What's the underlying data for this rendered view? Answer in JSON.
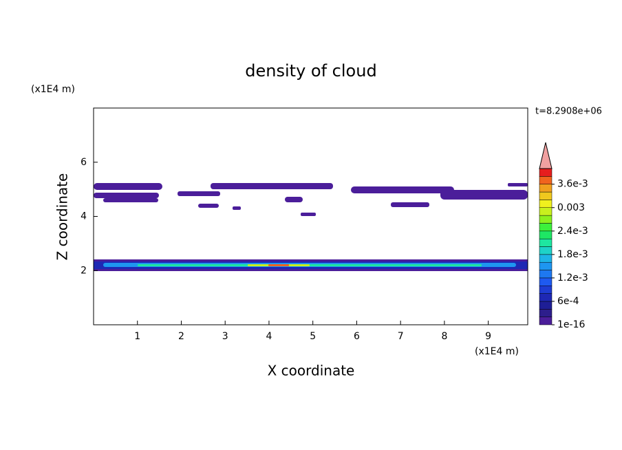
{
  "chart_data": {
    "type": "contour",
    "title": "density of cloud",
    "x_label": "X coordinate",
    "y_label": "Z coordinate",
    "x_unit": "(x1E4 m)",
    "y_unit": "(x1E4 m)",
    "time_label": "t=8.2908e+06",
    "xlim": [
      0,
      9.9
    ],
    "ylim": [
      0,
      8
    ],
    "xticks": [
      1,
      2,
      3,
      4,
      5,
      6,
      7,
      8,
      9
    ],
    "yticks": [
      2,
      4,
      6
    ],
    "colorbar": {
      "clim": [
        1e-16,
        0.004
      ],
      "ticks": [
        {
          "value": 1e-16,
          "label": "1e-16"
        },
        {
          "value": 0.0006,
          "label": "6e-4"
        },
        {
          "value": 0.0012,
          "label": "1.2e-3"
        },
        {
          "value": 0.0018,
          "label": "1.8e-3"
        },
        {
          "value": 0.0024,
          "label": "2.4e-3"
        },
        {
          "value": 0.003,
          "label": "0.003"
        },
        {
          "value": 0.0036,
          "label": "3.6e-3"
        }
      ],
      "colors": [
        "#4b1e9a",
        "#2d1e8c",
        "#1e1e96",
        "#1e28b4",
        "#1e3cd2",
        "#1e5af0",
        "#1e78f0",
        "#1e96f0",
        "#1eb4e6",
        "#1ed2c8",
        "#1ee6a0",
        "#1ee664",
        "#3cf03c",
        "#8cf01e",
        "#c8f01e",
        "#f0f01e",
        "#f0c81e",
        "#f0a01e",
        "#f0641e",
        "#e61e1e"
      ],
      "over_color": "#f0a0a0"
    }
  }
}
